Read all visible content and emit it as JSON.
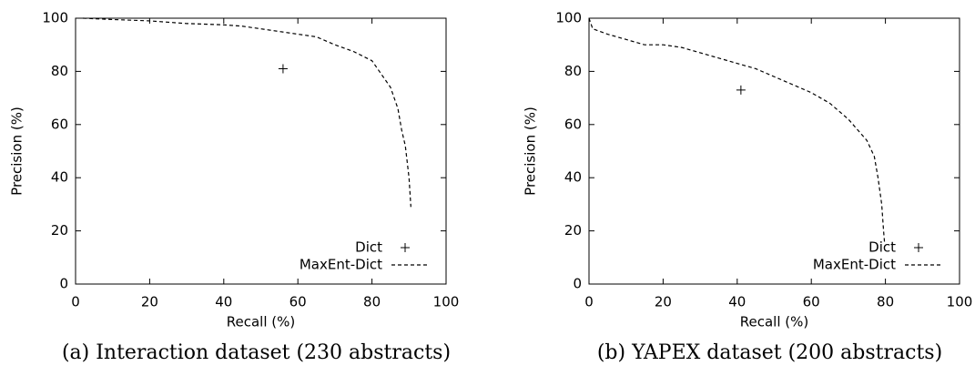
{
  "chart_data": [
    {
      "type": "line",
      "caption": "(a) Interaction dataset (230 abstracts)",
      "x_label": "Recall (%)",
      "y_label": "Precision (%)",
      "xlim": [
        0,
        100
      ],
      "ylim": [
        0,
        100
      ],
      "xticks": [
        0,
        20,
        40,
        60,
        80,
        100
      ],
      "yticks": [
        0,
        20,
        40,
        60,
        80,
        100
      ],
      "grid": false,
      "legend": "lower right",
      "series": [
        {
          "name": "Dict",
          "color": "#000000",
          "marker": "+",
          "x": [
            56
          ],
          "values": [
            81
          ]
        },
        {
          "name": "MaxEnt-Dict",
          "color": "#000000",
          "dash": true,
          "x": [
            2,
            10,
            20,
            30,
            40,
            45,
            50,
            55,
            60,
            65,
            70,
            75,
            80,
            83,
            85,
            87,
            88,
            89,
            90,
            90.5
          ],
          "values": [
            100,
            99.5,
            99,
            98,
            97.5,
            97,
            96,
            95,
            94,
            93,
            90,
            87.5,
            84,
            78,
            74,
            66,
            58,
            52,
            40,
            29
          ]
        }
      ]
    },
    {
      "type": "line",
      "caption": "(b) YAPEX dataset (200 abstracts)",
      "x_label": "Recall (%)",
      "y_label": "Precision (%)",
      "xlim": [
        0,
        100
      ],
      "ylim": [
        0,
        100
      ],
      "xticks": [
        0,
        20,
        40,
        60,
        80,
        100
      ],
      "yticks": [
        0,
        20,
        40,
        60,
        80,
        100
      ],
      "grid": false,
      "legend": "lower right",
      "series": [
        {
          "name": "Dict",
          "color": "#000000",
          "marker": "+",
          "x": [
            41
          ],
          "values": [
            73
          ]
        },
        {
          "name": "MaxEnt-Dict",
          "color": "#000000",
          "dash": true,
          "x": [
            0,
            1,
            5,
            10,
            15,
            20,
            25,
            30,
            35,
            40,
            45,
            50,
            55,
            60,
            65,
            70,
            75,
            77,
            78,
            79,
            79.5,
            79.8
          ],
          "values": [
            100,
            96,
            94,
            92,
            90,
            90,
            89,
            87,
            85,
            83,
            81,
            78,
            75,
            72,
            68,
            62,
            54,
            48,
            40,
            30,
            20,
            15
          ]
        }
      ]
    }
  ]
}
